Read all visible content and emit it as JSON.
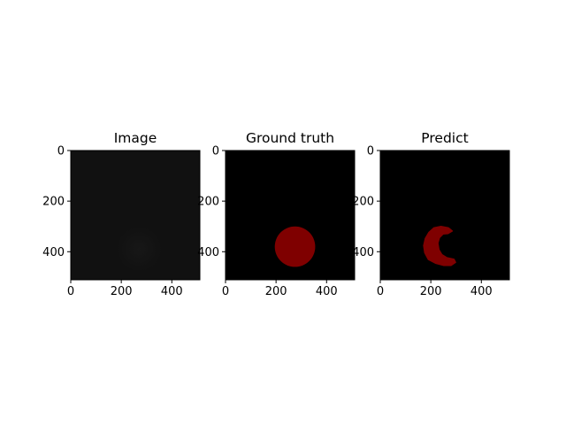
{
  "chart_data": [
    {
      "type": "image",
      "title": "Image",
      "xlim": [
        0,
        511
      ],
      "ylim": [
        511,
        0
      ],
      "xticks": [
        0,
        200,
        400
      ],
      "yticks": [
        0,
        200,
        400
      ],
      "background_color": "#111111",
      "blob": {
        "shape": "disk",
        "cx": 270,
        "cy": 390,
        "r": 90,
        "color": "#171717"
      }
    },
    {
      "type": "image",
      "title": "Ground truth",
      "xlim": [
        0,
        511
      ],
      "ylim": [
        511,
        0
      ],
      "xticks": [
        0,
        200,
        400
      ],
      "yticks": [
        0,
        200,
        400
      ],
      "background_color": "#000000",
      "mask": {
        "shape": "disk",
        "cx": 275,
        "cy": 380,
        "r": 80,
        "color": "#7f0000"
      }
    },
    {
      "type": "image",
      "title": "Predict",
      "xlim": [
        0,
        511
      ],
      "ylim": [
        511,
        0
      ],
      "xticks": [
        0,
        200,
        400
      ],
      "yticks": [
        0,
        200,
        400
      ],
      "background_color": "#000000",
      "mask": {
        "shape": "crescent",
        "color": "#7f0000",
        "outline": [
          [
            240,
            300
          ],
          [
            270,
            306
          ],
          [
            285,
            318
          ],
          [
            268,
            328
          ],
          [
            248,
            330
          ],
          [
            234,
            344
          ],
          [
            228,
            366
          ],
          [
            232,
            392
          ],
          [
            244,
            412
          ],
          [
            264,
            424
          ],
          [
            292,
            430
          ],
          [
            298,
            442
          ],
          [
            280,
            454
          ],
          [
            250,
            454
          ],
          [
            220,
            446
          ],
          [
            190,
            430
          ],
          [
            176,
            404
          ],
          [
            172,
            376
          ],
          [
            178,
            348
          ],
          [
            192,
            324
          ],
          [
            212,
            306
          ]
        ]
      }
    }
  ]
}
